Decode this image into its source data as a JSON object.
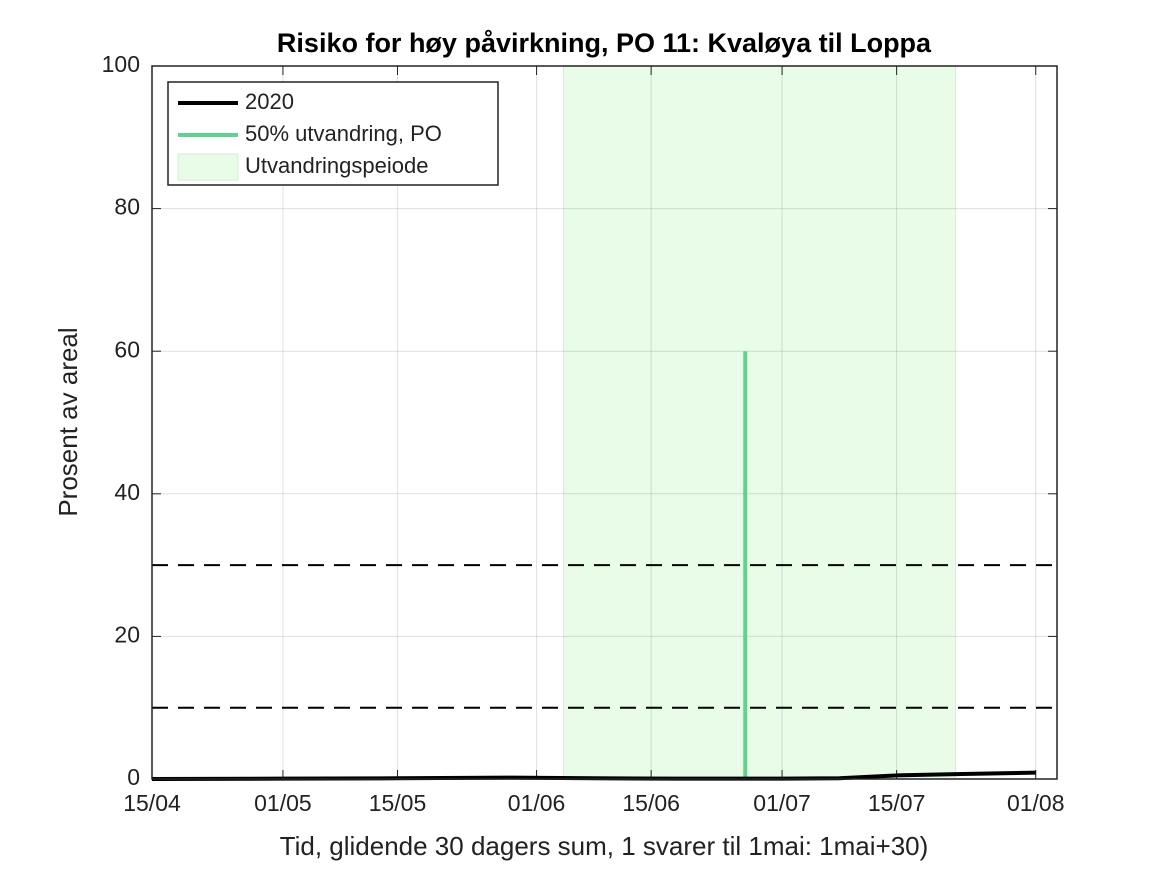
{
  "chart_data": {
    "type": "line",
    "title": "Risiko for høy påvirkning, PO 11: Kvaløya til Loppa",
    "xlabel": "Tid, glidende 30 dagers sum, 1 svarer til 1mai: 1mai+30)",
    "ylabel": "Prosent av areal",
    "x": [
      106,
      122,
      136,
      150,
      160,
      170,
      183,
      190,
      197,
      205,
      214
    ],
    "series": [
      {
        "name": "2020",
        "color": "#000000",
        "values": [
          0,
          0.05,
          0.1,
          0.2,
          0.1,
          0.05,
          0.05,
          0.1,
          0.5,
          0.7,
          0.9
        ]
      }
    ],
    "marker": {
      "name": "50% utvandring, PO",
      "color": "#5fd38d",
      "x": 178.5,
      "y": [
        0,
        60
      ]
    },
    "span": {
      "name": "Utvandringspeiode",
      "color": "#e8fce8",
      "x": [
        156.3,
        204.2
      ]
    },
    "hlines": [
      10,
      30
    ],
    "xlim": [
      106,
      216.6
    ],
    "xticks": [
      {
        "value": 106,
        "label": "15/04"
      },
      {
        "value": 122,
        "label": "01/05"
      },
      {
        "value": 136,
        "label": "15/05"
      },
      {
        "value": 153,
        "label": "01/06"
      },
      {
        "value": 167,
        "label": "15/06"
      },
      {
        "value": 183,
        "label": "01/07"
      },
      {
        "value": 197,
        "label": "15/07"
      },
      {
        "value": 214,
        "label": "01/08"
      }
    ],
    "ylim": [
      0,
      100
    ],
    "yticks": [
      0,
      20,
      40,
      60,
      80,
      100
    ],
    "grid": true,
    "legend": "upper-left"
  }
}
